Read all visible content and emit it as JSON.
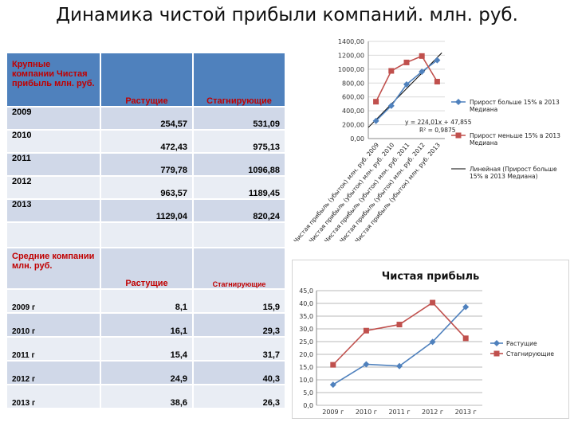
{
  "page_title": "Динамика чистой прибыли компаний. млн. руб.",
  "table": {
    "large": {
      "header": "Крупные компании Чистая прибыль млн. руб.",
      "col_growing": "Растущие",
      "col_stagnant": "Стагнирующие",
      "rows": [
        {
          "year": "2009",
          "growing": "254,57",
          "stagnant": "531,09"
        },
        {
          "year": "2010",
          "growing": "472,43",
          "stagnant": "975,13"
        },
        {
          "year": "2011",
          "growing": "779,78",
          "stagnant": "1096,88"
        },
        {
          "year": "2012",
          "growing": "963,57",
          "stagnant": "1189,45"
        },
        {
          "year": "2013",
          "growing": "1129,04",
          "stagnant": "820,24"
        }
      ]
    },
    "medium": {
      "header": "Средние компании млн. руб.",
      "col_growing": "Растущие",
      "col_stagnant": "Стагнирующие",
      "rows": [
        {
          "year": "2009 г",
          "growing": "8,1",
          "stagnant": "15,9"
        },
        {
          "year": "2010 г",
          "growing": "16,1",
          "stagnant": "29,3"
        },
        {
          "year": "2011 г",
          "growing": "15,4",
          "stagnant": "31,7"
        },
        {
          "year": "2012 г",
          "growing": "24,9",
          "stagnant": "40,3"
        },
        {
          "year": "2013 г",
          "growing": "38,6",
          "stagnant": "26,3"
        }
      ]
    }
  },
  "chart_data": [
    {
      "type": "line",
      "title": "",
      "categories": [
        "Чистая прибыль (убыток) млн. руб. 2009",
        "Чистая прибыль (убыток) млн. руб. 2010",
        "Чистая прибыль (убыток) млн. руб. 2011",
        "Чистая прибыль (убыток) млн. руб. 2012",
        "Чистая прибыль (убыток) млн. руб. 2013"
      ],
      "series": [
        {
          "name": "Прирост больше 15% в 2013 Медиана",
          "values": [
            254.57,
            472.43,
            779.78,
            963.57,
            1129.04
          ],
          "color": "#4f81bd",
          "marker": "diamond"
        },
        {
          "name": "Прирост меньше 15% в 2013 Медиана",
          "values": [
            531.09,
            975.13,
            1096.88,
            1189.45,
            820.24
          ],
          "color": "#c0504d",
          "marker": "square"
        }
      ],
      "trendline": {
        "name": "Линейная (Прирост больше 15% в 2013 Медиана)",
        "equation": "y = 224,01x + 47,855",
        "r2": "R² = 0,9875",
        "slope": 224.01,
        "intercept": 47.855,
        "color": "#000000"
      },
      "ylim": [
        0,
        1400
      ],
      "yticks": [
        "0,00",
        "200,00",
        "400,00",
        "600,00",
        "800,00",
        "1000,00",
        "1200,00",
        "1400,00"
      ],
      "grid": true,
      "legend": "right"
    },
    {
      "type": "line",
      "title": "Чистая прибыль",
      "categories": [
        "2009 г",
        "2010 г",
        "2011 г",
        "2012 г",
        "2013 г"
      ],
      "series": [
        {
          "name": "Растущие",
          "values": [
            8.1,
            16.1,
            15.4,
            24.9,
            38.6
          ],
          "color": "#4f81bd",
          "marker": "diamond"
        },
        {
          "name": "Стагнирующие",
          "values": [
            15.9,
            29.3,
            31.7,
            40.3,
            26.3
          ],
          "color": "#c0504d",
          "marker": "square"
        }
      ],
      "ylim": [
        0,
        45
      ],
      "yticks": [
        "0,0",
        "5,0",
        "10,0",
        "15,0",
        "20,0",
        "25,0",
        "30,0",
        "35,0",
        "40,0",
        "45,0"
      ],
      "grid": true,
      "legend": "right"
    }
  ]
}
